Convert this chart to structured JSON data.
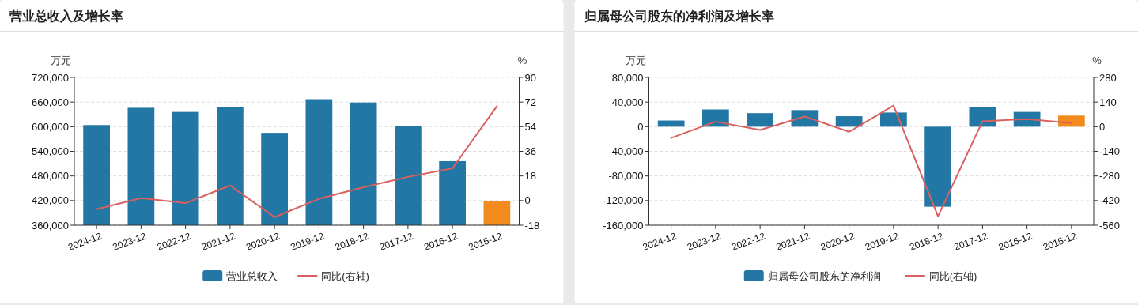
{
  "chart_data": [
    {
      "type": "bar",
      "title": "营业总收入及增长率",
      "ylabel": "万元",
      "y2label": "%",
      "categories": [
        "2024-12",
        "2023-12",
        "2022-12",
        "2021-12",
        "2020-12",
        "2019-12",
        "2018-12",
        "2017-12",
        "2016-12",
        "2015-12"
      ],
      "series": [
        {
          "name": "营业总收入",
          "color": "#2277a4",
          "colors": [
            "#2277a4",
            "#2277a4",
            "#2277a4",
            "#2277a4",
            "#2277a4",
            "#2277a4",
            "#2277a4",
            "#2277a4",
            "#2277a4",
            "#f28a1e"
          ],
          "values": [
            604000,
            646000,
            636000,
            648000,
            585000,
            667000,
            659000,
            601000,
            516000,
            418000
          ]
        },
        {
          "name": "同比(右轴)",
          "type": "line",
          "axis": "y2",
          "color": "#d9605e",
          "values": [
            -6.3,
            1.8,
            -1.8,
            11,
            -12.1,
            1.3,
            9.7,
            17.3,
            23.6,
            69
          ]
        }
      ],
      "ylim": [
        360000,
        720000
      ],
      "yticks": [
        {
          "value": 360000,
          "label": "360,000"
        },
        {
          "value": 420000,
          "label": "420,000"
        },
        {
          "value": 480000,
          "label": "480,000"
        },
        {
          "value": 540000,
          "label": "540,000"
        },
        {
          "value": 600000,
          "label": "600,000"
        },
        {
          "value": 660000,
          "label": "660,000"
        },
        {
          "value": 720000,
          "label": "720,000"
        }
      ],
      "y2lim": [
        -18,
        90
      ],
      "y2ticks": [
        -18,
        0,
        18,
        36,
        54,
        72,
        90
      ],
      "grid": "y",
      "legend": "bottom"
    },
    {
      "type": "bar",
      "title": "归属母公司股东的净利润及增长率",
      "ylabel": "万元",
      "y2label": "%",
      "categories": [
        "2024-12",
        "2023-12",
        "2022-12",
        "2021-12",
        "2020-12",
        "2019-12",
        "2018-12",
        "2017-12",
        "2016-12",
        "2015-12"
      ],
      "series": [
        {
          "name": "归属母公司股东的净利润",
          "color": "#2277a4",
          "colors": [
            "#2277a4",
            "#2277a4",
            "#2277a4",
            "#2277a4",
            "#2277a4",
            "#2277a4",
            "#2277a4",
            "#2277a4",
            "#2277a4",
            "#f28a1e"
          ],
          "values": [
            10000,
            28000,
            22000,
            27000,
            17000,
            23000,
            -130000,
            32000,
            24000,
            18000
          ]
        },
        {
          "name": "同比(右轴)",
          "type": "line",
          "axis": "y2",
          "color": "#d9605e",
          "values": [
            -64,
            29,
            -19,
            58,
            -29,
            120,
            -509,
            31,
            43,
            21
          ]
        }
      ],
      "ylim": [
        -160000,
        80000
      ],
      "yticks": [
        {
          "value": -160000,
          "label": "-160,000"
        },
        {
          "value": -120000,
          "label": "-120,000"
        },
        {
          "value": -80000,
          "label": "-80,000"
        },
        {
          "value": -40000,
          "label": "-40,000"
        },
        0,
        {
          "value": 40000,
          "label": "40,000"
        },
        {
          "value": 80000,
          "label": "80,000"
        }
      ],
      "y2lim": [
        -560,
        280
      ],
      "y2ticks": [
        -560,
        -420,
        -280,
        -140,
        0,
        140,
        280
      ],
      "grid": "y",
      "legend": "bottom"
    }
  ]
}
